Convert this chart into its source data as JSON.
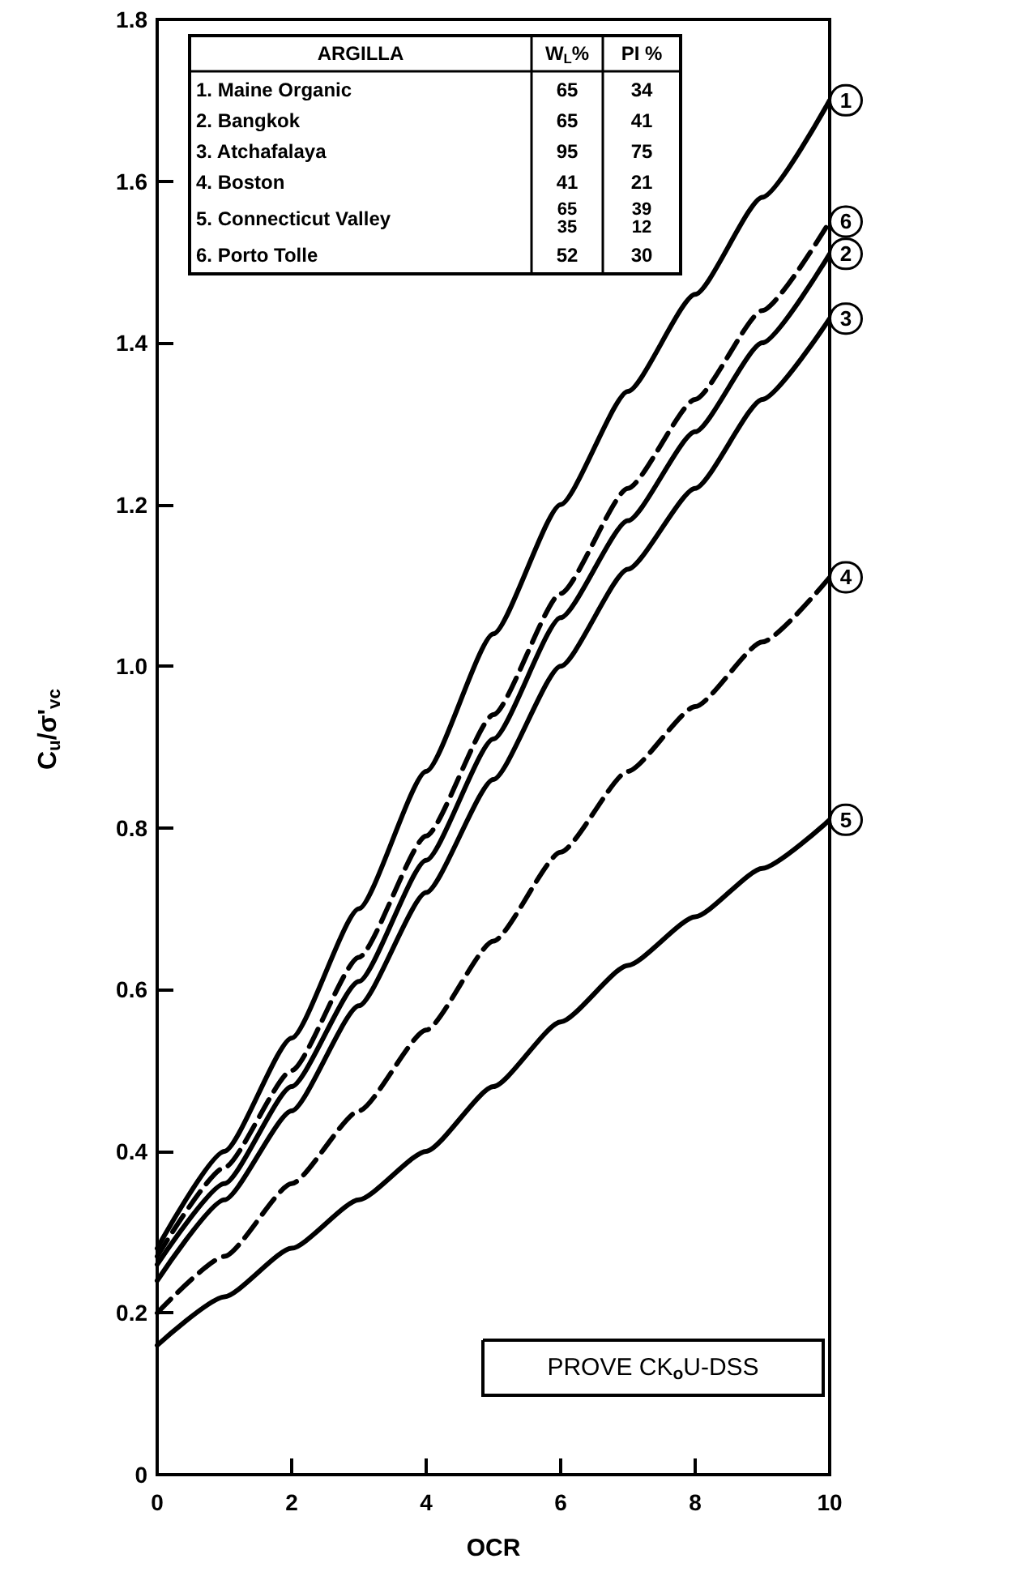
{
  "chart_data": {
    "type": "line",
    "xlabel": "OCR",
    "ylabel": "C$_{u}$/σ'$_{vc}$",
    "x": [
      0,
      1,
      2,
      3,
      4,
      5,
      6,
      7,
      8,
      9,
      10
    ],
    "series": [
      {
        "name": "1",
        "color": "#000000",
        "line_style": "solid",
        "values": [
          0.28,
          0.4,
          0.54,
          0.7,
          0.87,
          1.04,
          1.2,
          1.34,
          1.46,
          1.58,
          1.7
        ]
      },
      {
        "name": "6",
        "color": "#000000",
        "line_style": "dashed",
        "values": [
          0.27,
          0.38,
          0.5,
          0.64,
          0.79,
          0.94,
          1.09,
          1.22,
          1.33,
          1.44,
          1.55
        ]
      },
      {
        "name": "2",
        "color": "#000000",
        "line_style": "solid",
        "values": [
          0.26,
          0.36,
          0.48,
          0.61,
          0.76,
          0.91,
          1.06,
          1.18,
          1.29,
          1.4,
          1.51
        ]
      },
      {
        "name": "3",
        "color": "#000000",
        "line_style": "solid",
        "values": [
          0.24,
          0.34,
          0.45,
          0.58,
          0.72,
          0.86,
          1.0,
          1.12,
          1.22,
          1.33,
          1.43
        ]
      },
      {
        "name": "4",
        "color": "#000000",
        "line_style": "dashed",
        "values": [
          0.2,
          0.27,
          0.36,
          0.45,
          0.55,
          0.66,
          0.77,
          0.87,
          0.95,
          1.03,
          1.11
        ]
      },
      {
        "name": "5",
        "color": "#000000",
        "line_style": "solid",
        "values": [
          0.16,
          0.22,
          0.28,
          0.34,
          0.4,
          0.48,
          0.56,
          0.63,
          0.69,
          0.75,
          0.81
        ]
      }
    ],
    "xlim": [
      0,
      10
    ],
    "xticks": [
      0,
      2,
      4,
      6,
      8,
      10
    ],
    "ylim": [
      0,
      1.8
    ],
    "yticks": [
      0,
      0.2,
      0.4,
      0.6,
      0.8,
      {
        "value": 1,
        "label": "1.0"
      },
      1.2,
      1.4,
      1.6,
      1.8
    ],
    "grid": false,
    "legend": "right",
    "marker": "none",
    "annotations": [
      "ARGILLA",
      "W$_{L}$%",
      "PI %",
      "1. Maine Organic",
      "65",
      "34",
      "2. Bangkok",
      "65",
      "41",
      "3. Atchafalaya",
      "95",
      "75",
      "4. Boston",
      "41",
      "21",
      "5. Connecticut Valley",
      "65\n35",
      "39\n12",
      "6. Porto Tolle",
      "52",
      "30",
      "PROVE CK$_{o}$U-DSS"
    ]
  }
}
